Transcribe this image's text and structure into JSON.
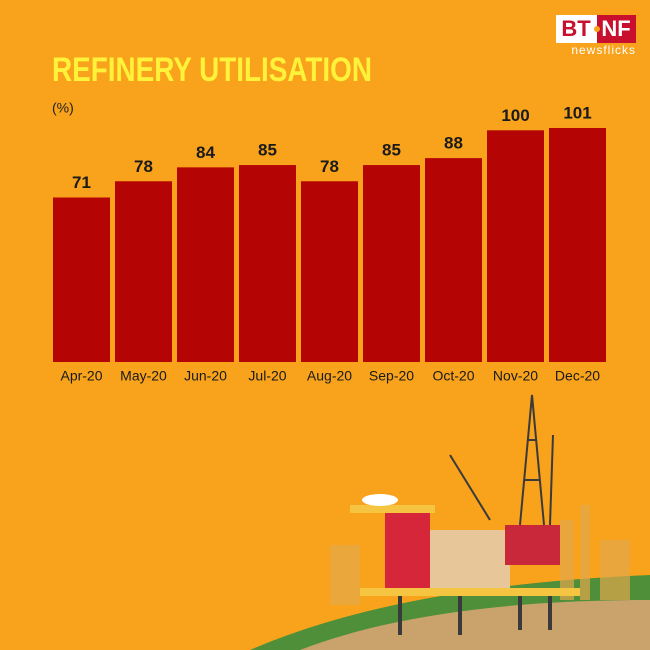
{
  "chart_data": {
    "type": "bar",
    "title": "REFINERY UTILISATION",
    "subtitle": "(%)",
    "categories": [
      "Apr-20",
      "May-20",
      "Jun-20",
      "Jul-20",
      "Aug-20",
      "Sep-20",
      "Oct-20",
      "Nov-20",
      "Dec-20"
    ],
    "values": [
      71,
      78,
      84,
      85,
      78,
      85,
      88,
      100,
      101
    ],
    "color": "#b50404"
  },
  "logo": {
    "brand_left": "BT",
    "brand_right": "NF",
    "tagline": "newsflicks"
  }
}
